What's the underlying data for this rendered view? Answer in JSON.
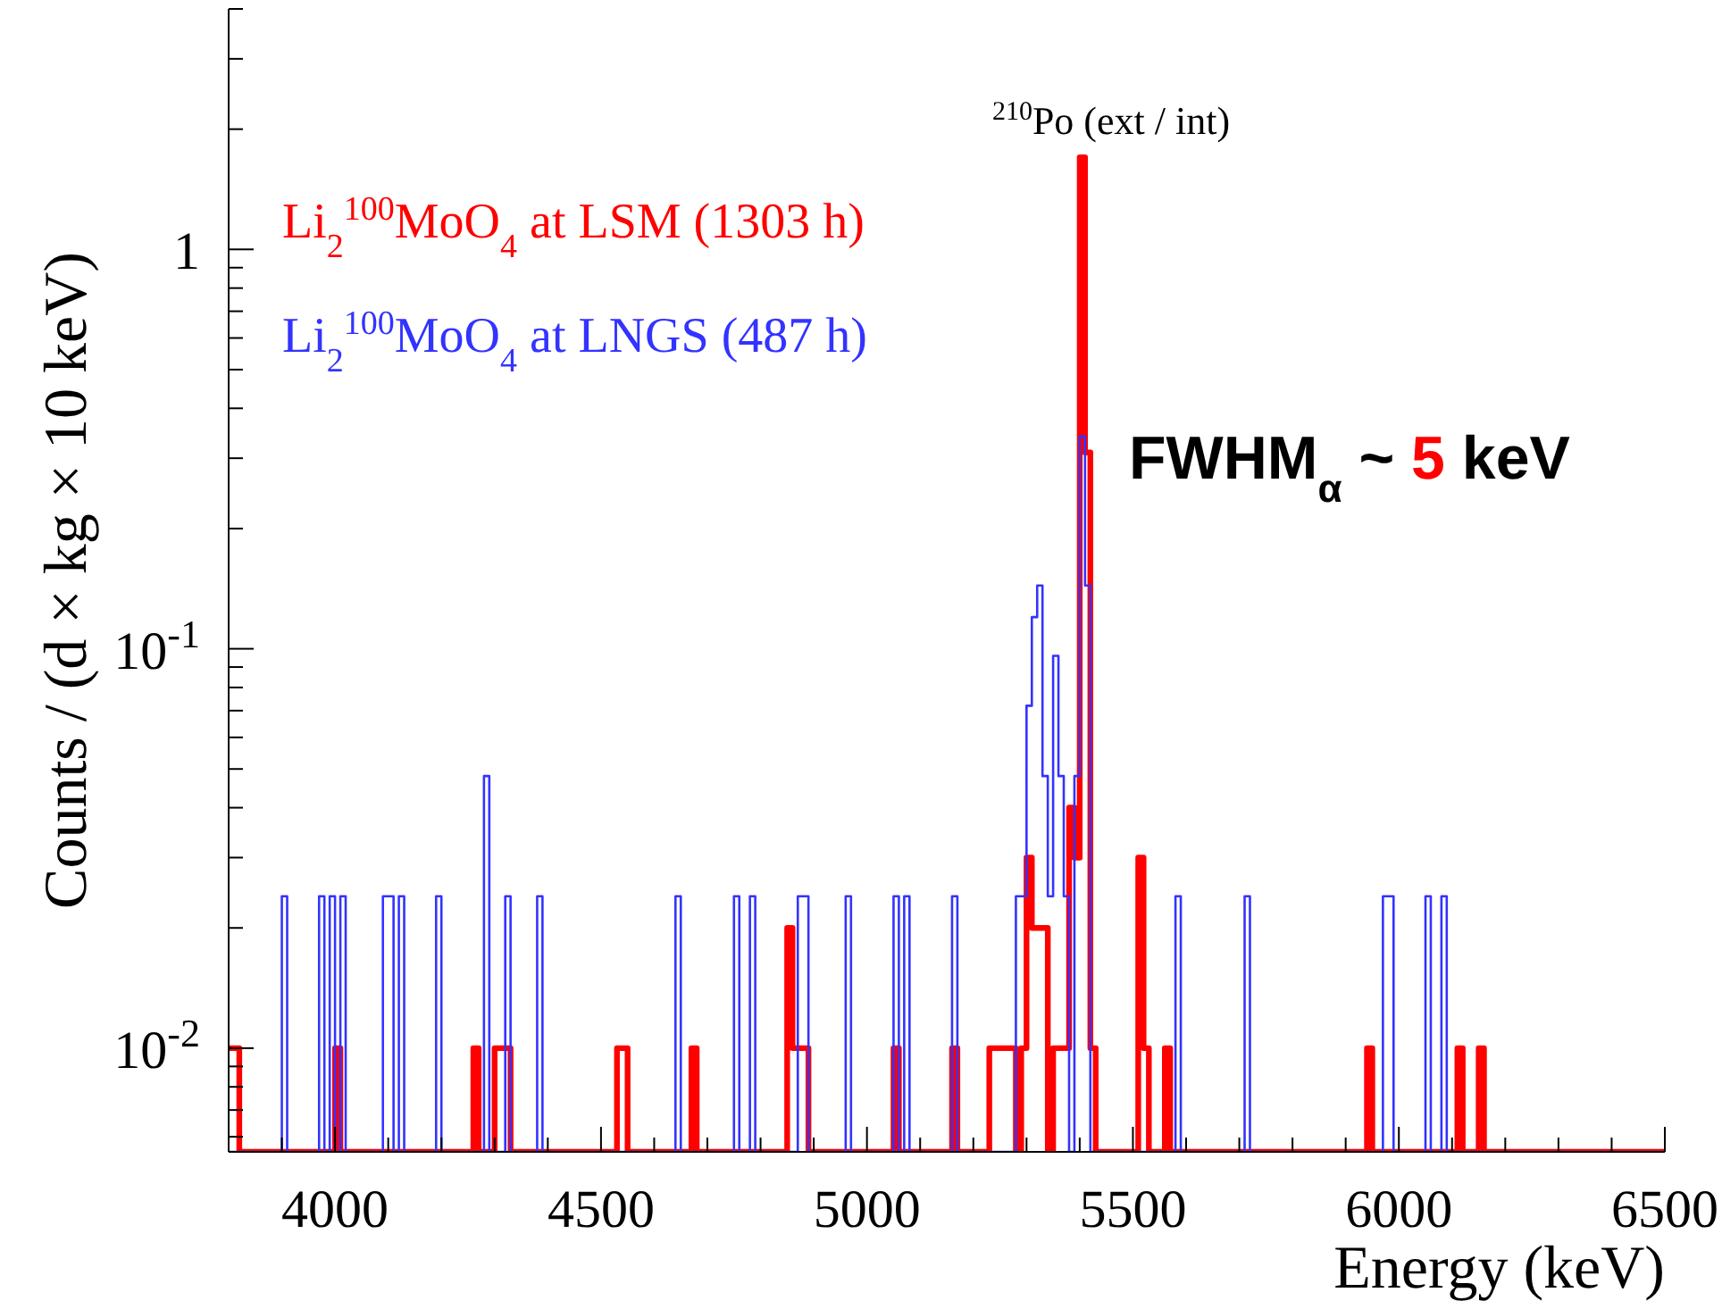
{
  "chart_data": {
    "type": "histogram",
    "xlabel": "Energy (keV)",
    "ylabel": "Counts / (d × kg × 10 keV)",
    "bins": [
      3800,
      3810,
      3820,
      3830,
      3840,
      3850,
      3860,
      3870,
      3880,
      3890,
      3900,
      3910,
      3920,
      3930,
      3940,
      3950,
      3960,
      3970,
      3980,
      3990,
      4000,
      4010,
      4020,
      4030,
      4040,
      4050,
      4060,
      4070,
      4080,
      4090,
      4100,
      4110,
      4120,
      4130,
      4140,
      4150,
      4160,
      4170,
      4180,
      4190,
      4200,
      4210,
      4220,
      4230,
      4240,
      4250,
      4260,
      4270,
      4280,
      4290,
      4300,
      4310,
      4320,
      4330,
      4340,
      4350,
      4360,
      4370,
      4380,
      4390,
      4400,
      4410,
      4420,
      4430,
      4440,
      4450,
      4460,
      4470,
      4480,
      4490,
      4500,
      4510,
      4520,
      4530,
      4540,
      4550,
      4560,
      4570,
      4580,
      4590,
      4600,
      4610,
      4620,
      4630,
      4640,
      4650,
      4660,
      4670,
      4680,
      4690,
      4700,
      4710,
      4720,
      4730,
      4740,
      4750,
      4760,
      4770,
      4780,
      4790,
      4800,
      4810,
      4820,
      4830,
      4840,
      4850,
      4860,
      4870,
      4880,
      4890,
      4900,
      4910,
      4920,
      4930,
      4940,
      4950,
      4960,
      4970,
      4980,
      4990,
      5000,
      5010,
      5020,
      5030,
      5040,
      5050,
      5060,
      5070,
      5080,
      5090,
      5100,
      5110,
      5120,
      5130,
      5140,
      5150,
      5160,
      5170,
      5180,
      5190,
      5200,
      5210,
      5220,
      5230,
      5240,
      5250,
      5260,
      5270,
      5280,
      5290,
      5300,
      5310,
      5320,
      5330,
      5340,
      5350,
      5360,
      5370,
      5380,
      5390,
      5400,
      5410,
      5420,
      5430,
      5440,
      5450,
      5460,
      5470,
      5480,
      5490,
      5500,
      5510,
      5520,
      5530,
      5540,
      5550,
      5560,
      5570,
      5580,
      5590,
      5600,
      5610,
      5620,
      5630,
      5640,
      5650,
      5660,
      5670,
      5680,
      5690,
      5700,
      5710,
      5720,
      5730,
      5740,
      5750,
      5760,
      5770,
      5780,
      5790,
      5800,
      5810,
      5820,
      5830,
      5840,
      5850,
      5860,
      5870,
      5880,
      5890,
      5900,
      5910,
      5920,
      5930,
      5940,
      5950,
      5960,
      5970,
      5980,
      5990,
      6000,
      6010,
      6020,
      6030,
      6040,
      6050,
      6060,
      6070,
      6080,
      6090,
      6100,
      6110,
      6120,
      6130,
      6140,
      6150,
      6160,
      6170,
      6180,
      6190,
      6200,
      6210,
      6220,
      6230,
      6240,
      6250,
      6260,
      6270,
      6280,
      6290,
      6300,
      6310,
      6320,
      6330,
      6340,
      6350,
      6360,
      6370,
      6380,
      6390,
      6400,
      6410,
      6420,
      6430,
      6440,
      6450,
      6460,
      6470,
      6480,
      6490,
      6500
    ],
    "series": [
      {
        "name": "Li$_{2}$$^{100}$MoO$_{4}$ at LSM (1303 h)",
        "color": "#ff0000",
        "values": [
          0.01,
          0.01,
          null,
          null,
          null,
          null,
          null,
          null,
          null,
          null,
          null,
          null,
          null,
          null,
          null,
          null,
          null,
          null,
          null,
          null,
          0.01,
          null,
          null,
          null,
          null,
          null,
          null,
          null,
          null,
          null,
          null,
          null,
          null,
          null,
          null,
          null,
          null,
          null,
          null,
          null,
          null,
          null,
          null,
          null,
          null,
          null,
          0.01,
          null,
          null,
          null,
          0.01,
          0.01,
          0.01,
          null,
          null,
          null,
          null,
          null,
          null,
          null,
          null,
          null,
          null,
          null,
          null,
          null,
          null,
          null,
          null,
          null,
          null,
          null,
          null,
          0.01,
          0.01,
          null,
          null,
          null,
          null,
          null,
          null,
          null,
          null,
          null,
          null,
          null,
          null,
          0.01,
          null,
          null,
          null,
          null,
          null,
          null,
          null,
          null,
          null,
          null,
          null,
          null,
          null,
          null,
          null,
          null,
          null,
          0.02,
          0.01,
          0.01,
          0.01,
          null,
          null,
          null,
          null,
          null,
          null,
          null,
          null,
          null,
          null,
          null,
          null,
          null,
          null,
          null,
          null,
          0.01,
          null,
          null,
          null,
          null,
          null,
          null,
          null,
          null,
          null,
          null,
          0.01,
          null,
          null,
          null,
          null,
          null,
          null,
          0.01,
          0.01,
          0.01,
          0.01,
          0.01,
          null,
          0.01,
          0.03,
          0.02,
          0.02,
          0.02,
          null,
          0.01,
          0.01,
          0.01,
          0.04,
          0.03,
          1.7,
          0.31,
          0.01,
          null,
          null,
          null,
          null,
          null,
          null,
          null,
          null,
          0.03,
          0.01,
          null,
          null,
          null,
          0.01,
          null,
          null,
          null,
          null,
          null,
          null,
          null,
          null,
          null,
          null,
          null,
          null,
          null,
          null,
          null,
          null,
          null,
          null,
          null,
          null,
          null,
          null,
          null,
          null,
          null,
          null,
          null,
          null,
          null,
          null,
          null,
          null,
          null,
          null,
          null,
          null,
          null,
          0.01,
          null,
          null,
          null,
          null,
          null,
          null,
          null,
          null,
          null,
          null,
          null,
          null,
          null,
          null,
          null,
          null,
          0.01,
          null,
          null,
          null,
          0.01,
          null,
          null,
          null,
          null,
          null,
          null,
          null,
          null,
          null,
          null,
          null,
          null,
          null,
          null,
          null,
          null,
          null,
          null,
          null,
          null,
          null,
          null,
          null,
          null,
          null,
          null,
          null,
          null,
          null,
          null,
          null,
          null,
          null,
          null
        ]
      },
      {
        "name": "Li$_{2}$$^{100}$MoO$_{4}$ at LNGS (487 h)",
        "color": "#3333ff",
        "values": [
          null,
          null,
          null,
          null,
          null,
          null,
          null,
          null,
          null,
          null,
          0.024,
          null,
          null,
          null,
          null,
          null,
          null,
          0.024,
          null,
          0.024,
          null,
          0.024,
          null,
          null,
          null,
          null,
          null,
          null,
          null,
          0.024,
          0.024,
          null,
          0.024,
          null,
          null,
          null,
          null,
          null,
          null,
          0.024,
          null,
          null,
          null,
          null,
          null,
          null,
          null,
          null,
          0.048,
          null,
          null,
          null,
          0.024,
          null,
          null,
          null,
          null,
          null,
          0.024,
          null,
          null,
          null,
          null,
          null,
          null,
          null,
          null,
          null,
          null,
          null,
          null,
          null,
          null,
          null,
          null,
          null,
          null,
          null,
          null,
          null,
          null,
          null,
          null,
          null,
          0.024,
          null,
          null,
          null,
          null,
          null,
          null,
          null,
          null,
          null,
          null,
          0.024,
          null,
          null,
          0.024,
          null,
          null,
          null,
          null,
          null,
          null,
          null,
          null,
          0.024,
          0.024,
          null,
          null,
          null,
          null,
          null,
          null,
          null,
          0.024,
          null,
          null,
          null,
          null,
          null,
          null,
          null,
          null,
          0.024,
          null,
          0.024,
          null,
          null,
          null,
          null,
          null,
          null,
          null,
          null,
          0.024,
          null,
          null,
          null,
          null,
          null,
          null,
          null,
          null,
          null,
          null,
          null,
          0.024,
          0.024,
          0.072,
          0.12,
          0.144,
          0.048,
          0.024,
          0.096,
          0.048,
          0.024,
          null,
          0.048,
          0.34,
          0.144,
          null,
          null,
          null,
          null,
          null,
          null,
          null,
          null,
          null,
          null,
          null,
          null,
          null,
          null,
          null,
          null,
          0.024,
          null,
          null,
          null,
          null,
          null,
          null,
          null,
          null,
          null,
          null,
          null,
          null,
          0.024,
          null,
          null,
          null,
          null,
          null,
          null,
          null,
          null,
          null,
          null,
          null,
          null,
          null,
          null,
          null,
          null,
          null,
          null,
          null,
          null,
          null,
          null,
          null,
          null,
          null,
          0.024,
          0.024,
          null,
          null,
          null,
          null,
          null,
          null,
          0.024,
          null,
          null,
          0.024,
          null,
          null,
          null,
          null,
          null,
          null,
          null,
          null,
          null,
          null,
          null,
          null,
          null,
          null,
          null,
          null,
          null,
          null,
          null,
          null,
          null,
          null,
          null,
          null,
          null,
          null,
          null,
          null,
          null,
          null,
          null,
          null,
          null,
          null,
          null,
          null,
          null,
          null,
          null,
          null,
          null
        ]
      }
    ],
    "xlim": [
      3800,
      6500
    ],
    "xticks": [
      {
        "value": 3800,
        "label": null
      },
      {
        "value": 3900,
        "label": null
      },
      4000,
      {
        "value": 4100,
        "label": null
      },
      {
        "value": 4200,
        "label": null
      },
      {
        "value": 4300,
        "label": null
      },
      {
        "value": 4400,
        "label": null
      },
      4500,
      {
        "value": 4600,
        "label": null
      },
      {
        "value": 4700,
        "label": null
      },
      {
        "value": 4800,
        "label": null
      },
      {
        "value": 4900,
        "label": null
      },
      5000,
      {
        "value": 5100,
        "label": null
      },
      {
        "value": 5200,
        "label": null
      },
      {
        "value": 5300,
        "label": null
      },
      {
        "value": 5400,
        "label": null
      },
      5500,
      {
        "value": 5600,
        "label": null
      },
      {
        "value": 5700,
        "label": null
      },
      {
        "value": 5800,
        "label": null
      },
      {
        "value": 5900,
        "label": null
      },
      6000,
      {
        "value": 6100,
        "label": null
      },
      {
        "value": 6200,
        "label": null
      },
      {
        "value": 6300,
        "label": null
      },
      {
        "value": 6400,
        "label": null
      },
      6500
    ],
    "ylim": [
      0.0055,
      4
    ],
    "log": "y",
    "yticks": [
      {
        "value": 0.006,
        "label": null
      },
      {
        "value": 0.007,
        "label": null
      },
      {
        "value": 0.008,
        "label": null
      },
      {
        "value": 0.009,
        "label": null
      },
      {
        "value": 0.01,
        "label": "10$^{-2}$"
      },
      {
        "value": 0.02,
        "label": null
      },
      {
        "value": 0.03,
        "label": null
      },
      {
        "value": 0.04,
        "label": null
      },
      {
        "value": 0.05,
        "label": null
      },
      {
        "value": 0.06,
        "label": null
      },
      {
        "value": 0.07,
        "label": null
      },
      {
        "value": 0.08,
        "label": null
      },
      {
        "value": 0.09,
        "label": null
      },
      {
        "value": 0.1,
        "label": "10$^{-1}$"
      },
      {
        "value": 0.2,
        "label": null
      },
      {
        "value": 0.3,
        "label": null
      },
      {
        "value": 0.4,
        "label": null
      },
      {
        "value": 0.5,
        "label": null
      },
      {
        "value": 0.6,
        "label": null
      },
      {
        "value": 0.7,
        "label": null
      },
      {
        "value": 0.8,
        "label": null
      },
      {
        "value": 0.9,
        "label": null
      },
      1,
      {
        "value": 2,
        "label": null
      },
      {
        "value": 3,
        "label": null
      },
      {
        "value": 4,
        "label": null
      }
    ],
    "legend": "top left",
    "annotations": [
      "$^{210}$Po (ext / int)",
      "FWHM$_{α}$ ~ 5 keV"
    ]
  }
}
